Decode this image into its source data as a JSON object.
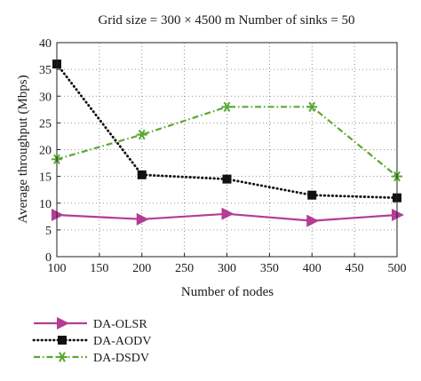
{
  "chart_data": {
    "type": "line",
    "title": "Grid size = 300 × 4500 m  Number of sinks = 50",
    "xlabel": "Number of nodes",
    "ylabel": "Average throughput (Mbps)",
    "xlim": [
      100,
      500
    ],
    "ylim": [
      0,
      40
    ],
    "xticks": [
      100,
      150,
      200,
      250,
      300,
      350,
      400,
      450,
      500
    ],
    "yticks": [
      0,
      5,
      10,
      15,
      20,
      25,
      30,
      35,
      40
    ],
    "grid": true,
    "legend_position": "below",
    "x": [
      100,
      200,
      300,
      400,
      500
    ],
    "series": [
      {
        "name": "DA-OLSR",
        "values": [
          7.8,
          7.0,
          8.0,
          6.7,
          7.8
        ],
        "color": "#b43c96",
        "line": "solid",
        "marker": "triangle-right"
      },
      {
        "name": "DA-AODV",
        "values": [
          36.0,
          15.3,
          14.5,
          11.5,
          11.0
        ],
        "color": "#111111",
        "line": "dotted",
        "marker": "square"
      },
      {
        "name": "DA-DSDV",
        "values": [
          18.2,
          22.8,
          28.0,
          28.0,
          15.0
        ],
        "color": "#5aa832",
        "line": "dashdot",
        "marker": "asterisk"
      }
    ]
  }
}
